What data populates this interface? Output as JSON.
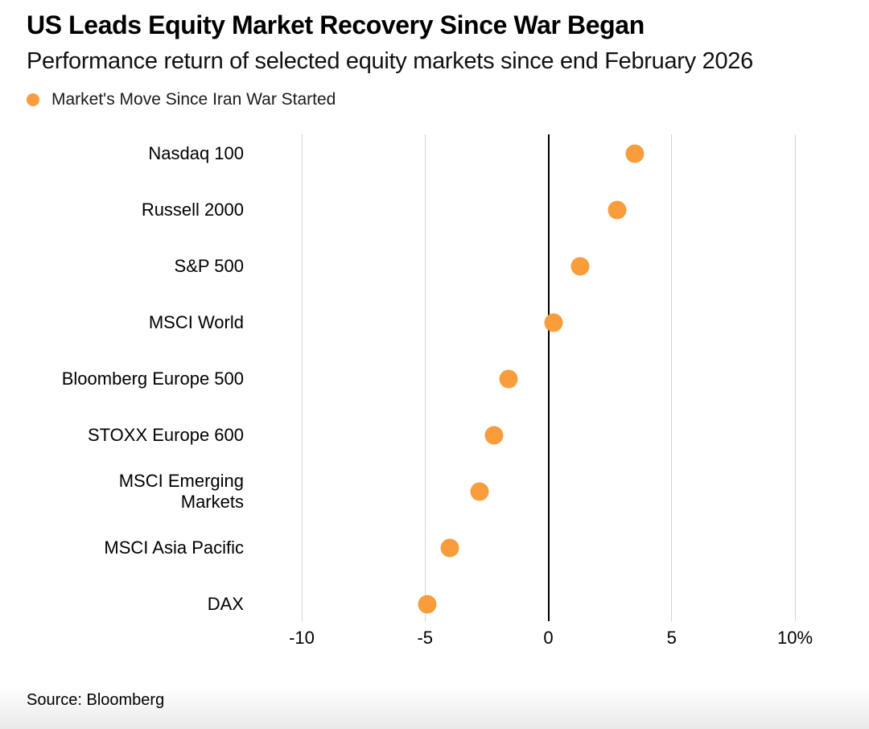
{
  "header": {
    "title": "US Leads Equity Market Recovery Since War Began",
    "subtitle": "Performance return of selected equity markets since end February 2026"
  },
  "legend": {
    "label": "Market's Move Since Iran War Started",
    "marker_color": "#F89C3C"
  },
  "footer": {
    "source": "Source: Bloomberg"
  },
  "chart_data": {
    "type": "scatter",
    "orientation": "horizontal_dot_plot",
    "title": "US Leads Equity Market Recovery Since War Began",
    "subtitle": "Performance return of selected equity markets since end February 2026",
    "legend_label": "Market's Move Since Iran War Started",
    "categories": [
      "Nasdaq 100",
      "Russell 2000",
      "S&P 500",
      "MSCI World",
      "Bloomberg Europe 500",
      "STOXX Europe 600",
      "MSCI Emerging Markets",
      "MSCI Asia Pacific",
      "DAX"
    ],
    "category_display": [
      "Nasdaq 100",
      "Russell 2000",
      "S&P 500",
      "MSCI World",
      "Bloomberg Europe 500",
      "STOXX Europe 600",
      "MSCI Emerging\nMarkets",
      "MSCI Asia Pacific",
      "DAX"
    ],
    "values_pct": [
      3.5,
      2.8,
      1.3,
      0.2,
      -1.6,
      -2.2,
      -2.8,
      -4.0,
      -4.9
    ],
    "xlim": [
      -10,
      10
    ],
    "xticks": [
      -10,
      -5,
      0,
      5,
      10
    ],
    "xtick_labels": [
      "-10",
      "-5",
      "0",
      "5",
      "10%"
    ],
    "grid": "vertical",
    "zero_line": true,
    "marker_color": "#F89C3C",
    "gridline_color": "#d4d4d4",
    "source": "Source: Bloomberg"
  }
}
